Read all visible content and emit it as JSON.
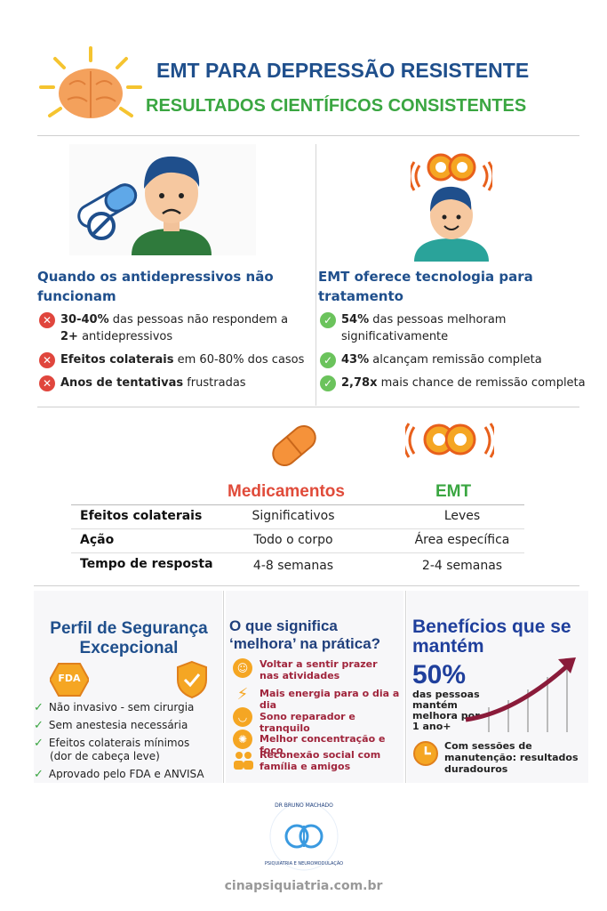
{
  "header": {
    "title": "EMT PARA DEPRESSÃO RESISTENTE",
    "subtitle": "RESULTADOS CIENTÍFICOS CONSISTENTES"
  },
  "left_col": {
    "title": "Quando os antidepressivos não funcionam",
    "items": [
      {
        "bold": "30-40%",
        "text": " das pessoas não respondem a"
      },
      {
        "bold": "2+",
        "text": " antidepressivos"
      },
      {
        "bold": "Efeitos colaterais",
        "text": " em 60-80% dos casos"
      },
      {
        "bold": "Anos de tentativas",
        "text": " frustradas"
      }
    ]
  },
  "right_col": {
    "title": "EMT oferece tecnologia para tratamento",
    "items": [
      {
        "bold": "54%",
        "text": " das pessoas melhoram"
      },
      {
        "bold": "",
        "text": "significativamente"
      },
      {
        "bold": "43%",
        "text": " alcançam remissão completa"
      },
      {
        "bold": "2,78x",
        "text": " mais chance de remissão completa"
      }
    ]
  },
  "comparison": {
    "col1": "Medicamentos",
    "col2": "EMT",
    "rows": [
      {
        "label": "Efeitos colaterais",
        "v1": "Significativos",
        "v2": "Leves"
      },
      {
        "label": "Ação",
        "v1": "Todo o corpo",
        "v2": "Área específica"
      },
      {
        "label": "Tempo de resposta",
        "v1": "4-8 semanas",
        "v2": "2-4 semanas"
      }
    ]
  },
  "safety": {
    "title": "Perfil de Segurança Excepcional",
    "fda_badge": "FDA",
    "items": [
      "Não invasivo - sem cirurgia",
      "Sem anestesia necessária",
      "Efeitos colaterais mínimos",
      "(dor de cabeça leve)",
      "Aprovado pelo FDA e ANVISA"
    ]
  },
  "meaning": {
    "title": "O que significa ‘melhora’ na prática?",
    "items": [
      {
        "icon": "smile-icon",
        "text": "Voltar a sentir prazer nas atividades"
      },
      {
        "icon": "lightning-icon",
        "text": "Mais energia para o dia a dia"
      },
      {
        "icon": "sleep-icon",
        "text": "Sono reparador e tranquilo"
      },
      {
        "icon": "brain-icon",
        "text": "Melhor concentração e foco"
      },
      {
        "icon": "people-icon",
        "text": "Reconexão social com família e amigos"
      }
    ]
  },
  "benefits": {
    "title": "Benefícios que se mantém",
    "percent": "50%",
    "desc": "das pessoas mantém melhora por 1 ano+",
    "footer": "Com sessões de manutenção: resultados duradouros"
  },
  "logo": {
    "text_top": "DR BRUNO MACHADO",
    "text_bottom": "PSIQUIATRIA E NEUROMODULAÇÃO"
  },
  "footer": "cinapsiquiatria.com.br",
  "colors": {
    "blue": "#1f4f8c",
    "green": "#3aa641",
    "red": "#e04b3a",
    "orange": "#f5a623",
    "maroon": "#a0253c"
  }
}
